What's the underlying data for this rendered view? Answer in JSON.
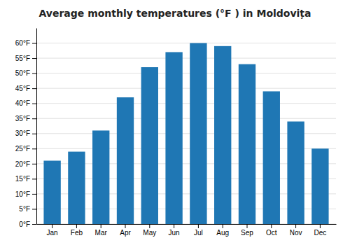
{
  "chart_data": {
    "type": "bar",
    "title": "Average monthly temperatures (°F ) in Moldovița",
    "categories": [
      "Jan",
      "Feb",
      "Mar",
      "Apr",
      "May",
      "Jun",
      "Jul",
      "Aug",
      "Sep",
      "Oct",
      "Nov",
      "Dec"
    ],
    "values": [
      21,
      24,
      31,
      42,
      52,
      57,
      60,
      59,
      53,
      44,
      34,
      25
    ],
    "ylim": [
      0,
      65
    ],
    "yticks": [
      {
        "value": 0,
        "label": "0°F"
      },
      {
        "value": 5,
        "label": "5°F"
      },
      {
        "value": 10,
        "label": "10°F"
      },
      {
        "value": 15,
        "label": "15°F"
      },
      {
        "value": 20,
        "label": "20°F"
      },
      {
        "value": 25,
        "label": "25°F"
      },
      {
        "value": 30,
        "label": "30°F"
      },
      {
        "value": 35,
        "label": "35°F"
      },
      {
        "value": 40,
        "label": "40°F"
      },
      {
        "value": 45,
        "label": "45°F"
      },
      {
        "value": 50,
        "label": "50°F"
      },
      {
        "value": 55,
        "label": "55°F"
      },
      {
        "value": 60,
        "label": "60°F"
      }
    ],
    "grid": true
  }
}
